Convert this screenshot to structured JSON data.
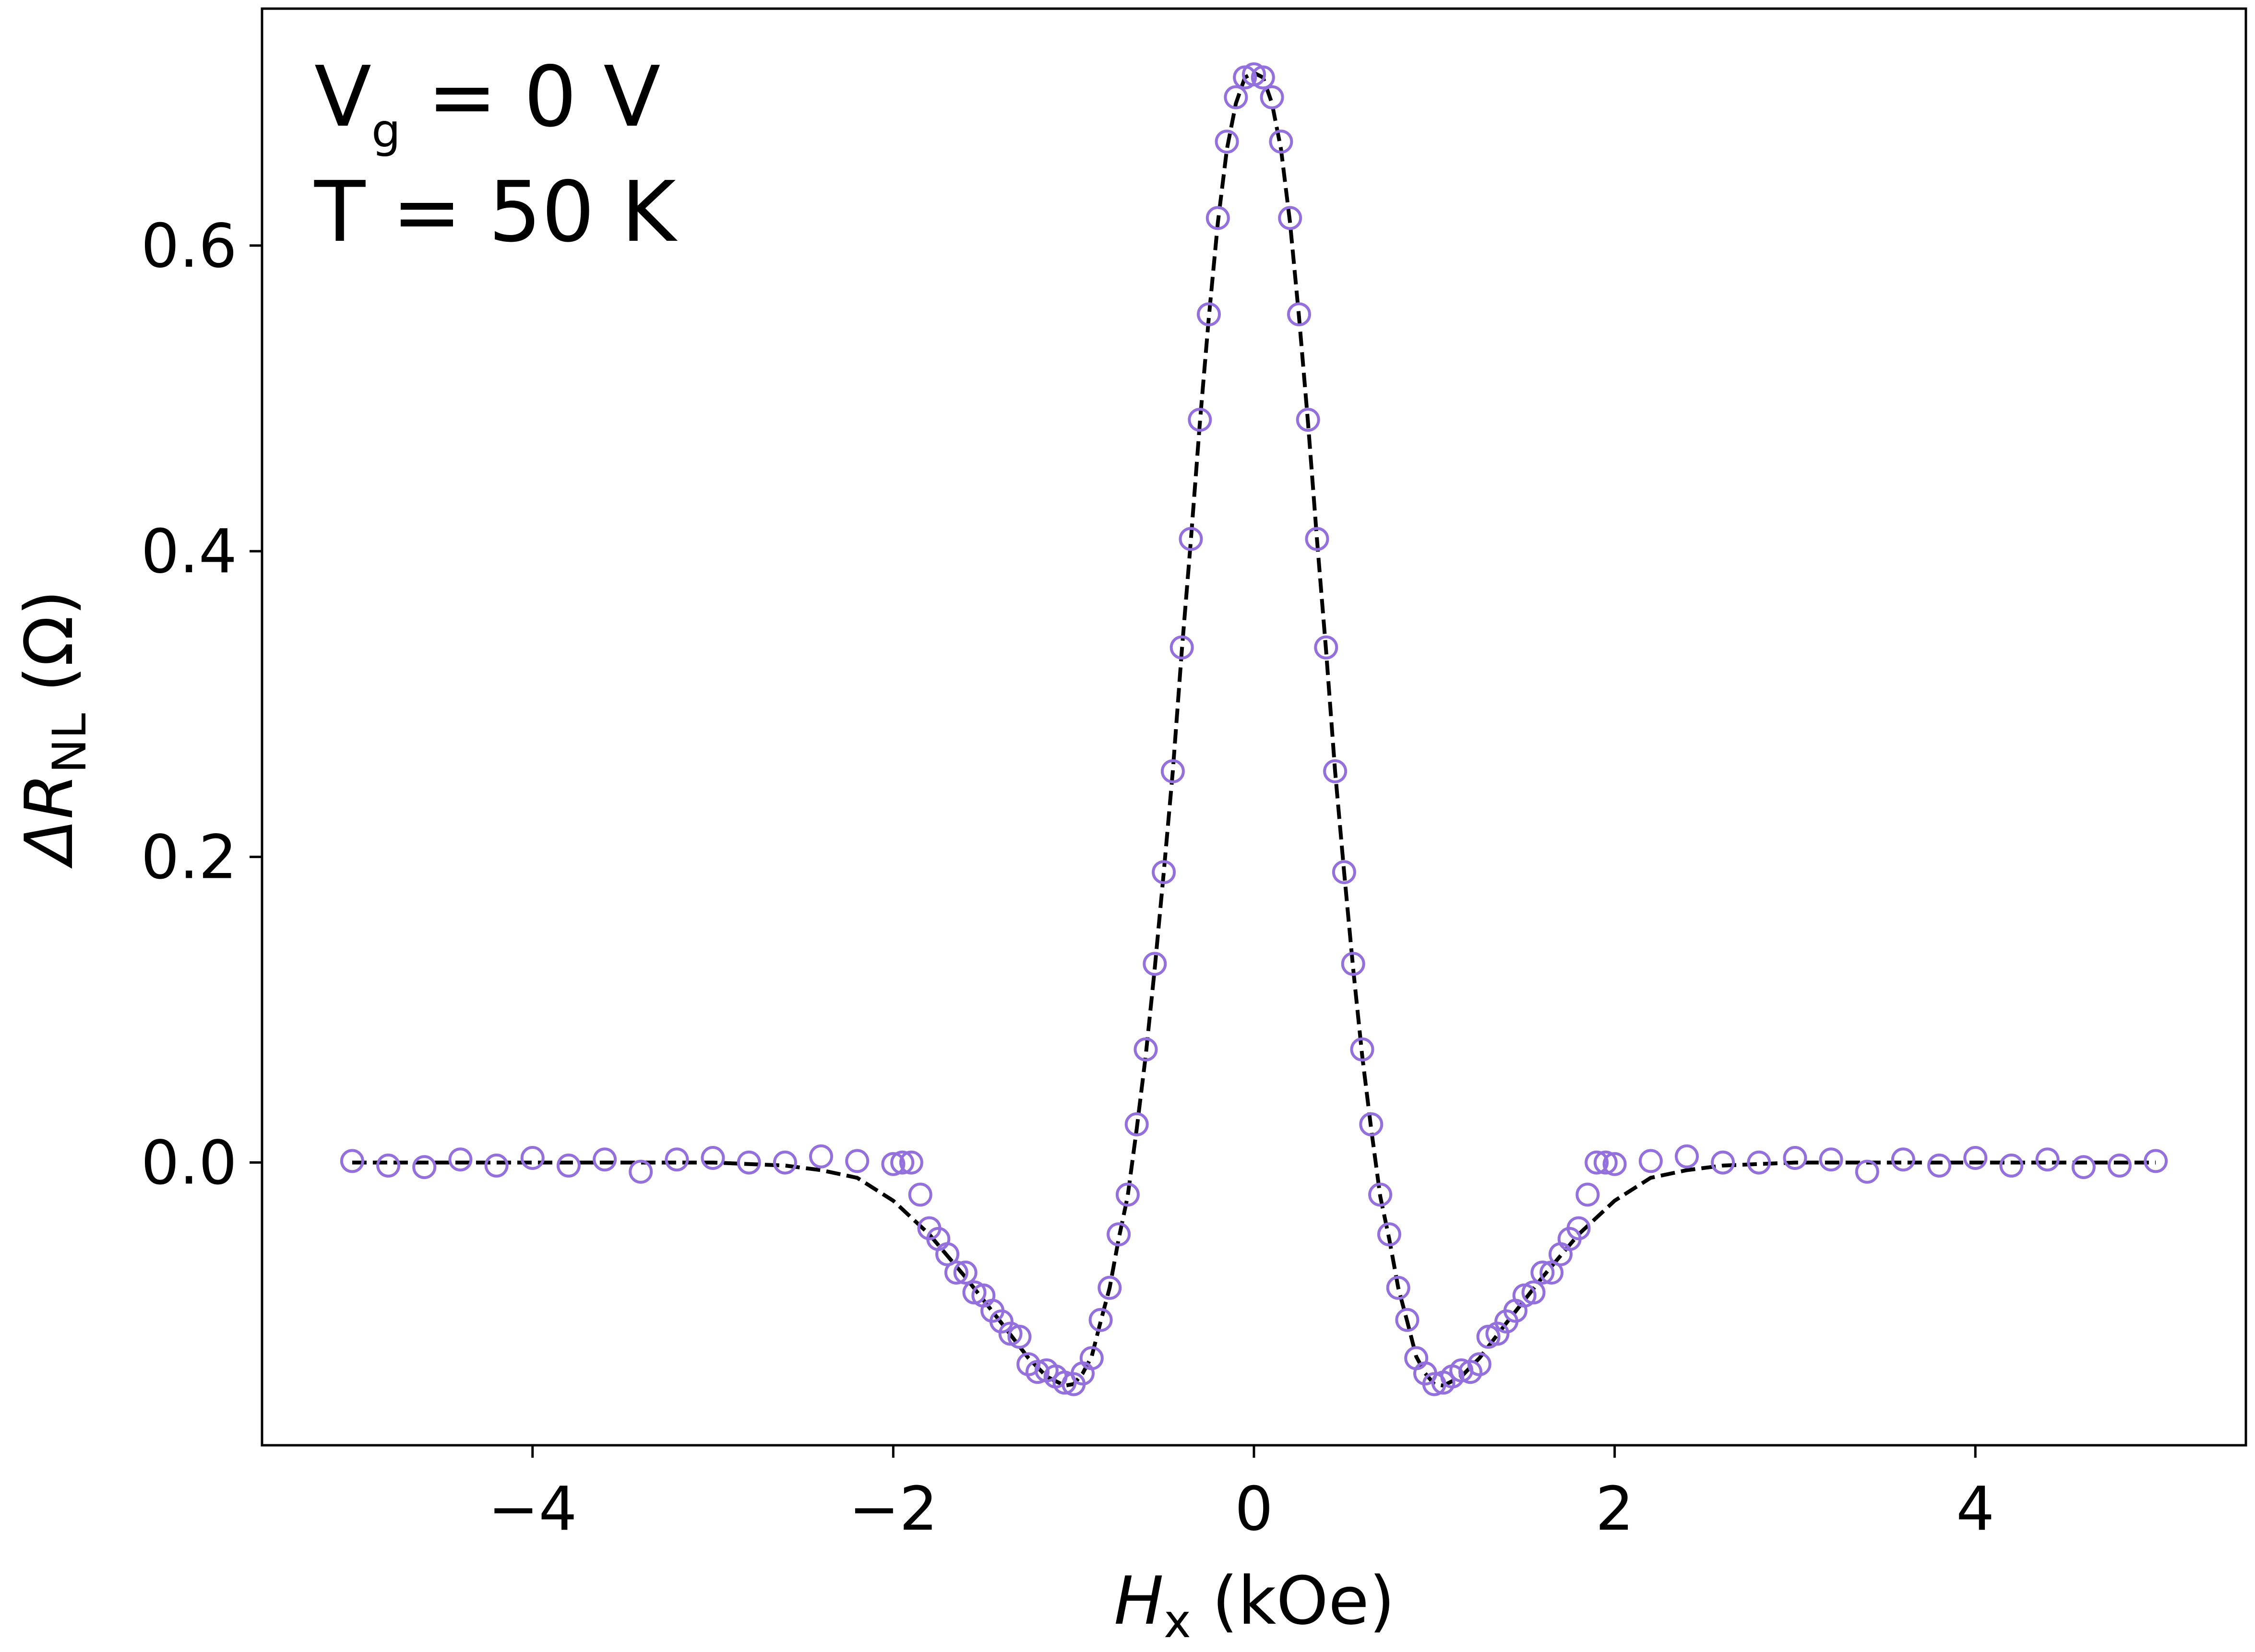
{
  "chart_data": {
    "type": "scatter",
    "xlim": [
      -5.5,
      5.5
    ],
    "ylim": [
      -0.185,
      0.755
    ],
    "x_ticks": [
      {
        "value": -4,
        "label": "−4"
      },
      {
        "value": -2,
        "label": "−2"
      },
      {
        "value": 0,
        "label": "0"
      },
      {
        "value": 2,
        "label": "2"
      },
      {
        "value": 4,
        "label": "4"
      }
    ],
    "y_ticks": [
      {
        "value": 0.0,
        "label": "0.0"
      },
      {
        "value": 0.2,
        "label": "0.2"
      },
      {
        "value": 0.4,
        "label": "0.4"
      },
      {
        "value": 0.6,
        "label": "0.6"
      }
    ],
    "xlabel": {
      "symbol": "H",
      "sub": "x",
      "unit": " (kOe)"
    },
    "ylabel": {
      "symbol": "ΔR",
      "sub": "NL",
      "unit": " (Ω)"
    },
    "annotations": {
      "line1": {
        "main": "V",
        "sub": "g",
        "rest": " = 0 V"
      },
      "line2": "T = 50 K"
    },
    "grid": false,
    "marker_color": "#9370db",
    "fit_color": "#000000",
    "series": [
      {
        "kind": "data",
        "points": [
          [
            -5.0,
            0.001
          ],
          [
            -4.8,
            -0.002
          ],
          [
            -4.6,
            -0.003
          ],
          [
            -4.4,
            0.002
          ],
          [
            -4.2,
            -0.002
          ],
          [
            -4.0,
            0.003
          ],
          [
            -3.8,
            -0.002
          ],
          [
            -3.6,
            0.002
          ],
          [
            -3.4,
            -0.006
          ],
          [
            -3.2,
            0.002
          ],
          [
            -3.0,
            0.003
          ],
          [
            -2.8,
            0.0
          ],
          [
            -2.6,
            0.0
          ],
          [
            -2.4,
            0.004
          ],
          [
            -2.2,
            0.001
          ],
          [
            -2.0,
            -0.001
          ],
          [
            -1.95,
            0.0
          ],
          [
            -1.9,
            0.0
          ],
          [
            -1.85,
            -0.021
          ],
          [
            -1.8,
            -0.043
          ],
          [
            -1.75,
            -0.05
          ],
          [
            -1.7,
            -0.06
          ],
          [
            -1.65,
            -0.072
          ],
          [
            -1.6,
            -0.072
          ],
          [
            -1.55,
            -0.085
          ],
          [
            -1.5,
            -0.087
          ],
          [
            -1.45,
            -0.097
          ],
          [
            -1.4,
            -0.104
          ],
          [
            -1.35,
            -0.112
          ],
          [
            -1.3,
            -0.114
          ],
          [
            -1.25,
            -0.132
          ],
          [
            -1.2,
            -0.137
          ],
          [
            -1.15,
            -0.136
          ],
          [
            -1.1,
            -0.14
          ],
          [
            -1.05,
            -0.144
          ],
          [
            -1.0,
            -0.145
          ],
          [
            -0.95,
            -0.138
          ],
          [
            -0.9,
            -0.128
          ],
          [
            -0.85,
            -0.103
          ],
          [
            -0.8,
            -0.082
          ],
          [
            -0.75,
            -0.047
          ],
          [
            -0.7,
            -0.021
          ],
          [
            -0.65,
            0.025
          ],
          [
            -0.6,
            0.074
          ],
          [
            -0.55,
            0.13
          ],
          [
            -0.5,
            0.19
          ],
          [
            -0.45,
            0.256
          ],
          [
            -0.4,
            0.337
          ],
          [
            -0.35,
            0.408
          ],
          [
            -0.3,
            0.486
          ],
          [
            -0.25,
            0.555
          ],
          [
            -0.2,
            0.618
          ],
          [
            -0.15,
            0.668
          ],
          [
            -0.1,
            0.697
          ],
          [
            -0.05,
            0.71
          ],
          [
            0.0,
            0.712
          ],
          [
            0.05,
            0.71
          ],
          [
            0.1,
            0.697
          ],
          [
            0.15,
            0.668
          ],
          [
            0.2,
            0.618
          ],
          [
            0.25,
            0.555
          ],
          [
            0.3,
            0.486
          ],
          [
            0.35,
            0.408
          ],
          [
            0.4,
            0.337
          ],
          [
            0.45,
            0.256
          ],
          [
            0.5,
            0.19
          ],
          [
            0.55,
            0.13
          ],
          [
            0.6,
            0.074
          ],
          [
            0.65,
            0.025
          ],
          [
            0.7,
            -0.021
          ],
          [
            0.75,
            -0.047
          ],
          [
            0.8,
            -0.082
          ],
          [
            0.85,
            -0.103
          ],
          [
            0.9,
            -0.128
          ],
          [
            0.95,
            -0.138
          ],
          [
            1.0,
            -0.145
          ],
          [
            1.05,
            -0.144
          ],
          [
            1.1,
            -0.14
          ],
          [
            1.15,
            -0.136
          ],
          [
            1.2,
            -0.137
          ],
          [
            1.25,
            -0.132
          ],
          [
            1.3,
            -0.114
          ],
          [
            1.35,
            -0.112
          ],
          [
            1.4,
            -0.104
          ],
          [
            1.45,
            -0.097
          ],
          [
            1.5,
            -0.087
          ],
          [
            1.55,
            -0.085
          ],
          [
            1.6,
            -0.072
          ],
          [
            1.65,
            -0.072
          ],
          [
            1.7,
            -0.06
          ],
          [
            1.75,
            -0.05
          ],
          [
            1.8,
            -0.043
          ],
          [
            1.85,
            -0.021
          ],
          [
            1.9,
            0.0
          ],
          [
            1.95,
            0.0
          ],
          [
            2.0,
            -0.001
          ],
          [
            2.2,
            0.001
          ],
          [
            2.4,
            0.004
          ],
          [
            2.6,
            0.0
          ],
          [
            2.8,
            0.0
          ],
          [
            3.0,
            0.003
          ],
          [
            3.2,
            0.002
          ],
          [
            3.4,
            -0.006
          ],
          [
            3.6,
            0.002
          ],
          [
            3.8,
            -0.002
          ],
          [
            4.0,
            0.003
          ],
          [
            4.2,
            -0.002
          ],
          [
            4.4,
            0.002
          ],
          [
            4.6,
            -0.003
          ],
          [
            4.8,
            -0.002
          ],
          [
            5.0,
            0.001
          ]
        ]
      },
      {
        "kind": "fit",
        "style": "dashed",
        "points": [
          [
            -5.0,
            0.0
          ],
          [
            -3.0,
            0.0
          ],
          [
            -2.6,
            -0.002
          ],
          [
            -2.4,
            -0.005
          ],
          [
            -2.2,
            -0.01
          ],
          [
            -2.0,
            -0.025
          ],
          [
            -1.8,
            -0.047
          ],
          [
            -1.6,
            -0.075
          ],
          [
            -1.4,
            -0.105
          ],
          [
            -1.25,
            -0.128
          ],
          [
            -1.15,
            -0.14
          ],
          [
            -1.05,
            -0.146
          ],
          [
            -1.0,
            -0.145
          ],
          [
            -0.95,
            -0.138
          ],
          [
            -0.9,
            -0.127
          ],
          [
            -0.85,
            -0.104
          ],
          [
            -0.8,
            -0.082
          ],
          [
            -0.75,
            -0.05
          ],
          [
            -0.7,
            -0.022
          ],
          [
            -0.65,
            0.022
          ],
          [
            -0.6,
            0.07
          ],
          [
            -0.55,
            0.127
          ],
          [
            -0.5,
            0.19
          ],
          [
            -0.45,
            0.256
          ],
          [
            -0.4,
            0.335
          ],
          [
            -0.35,
            0.407
          ],
          [
            -0.3,
            0.484
          ],
          [
            -0.25,
            0.553
          ],
          [
            -0.2,
            0.615
          ],
          [
            -0.15,
            0.663
          ],
          [
            -0.1,
            0.693
          ],
          [
            -0.05,
            0.71
          ],
          [
            0.0,
            0.713
          ],
          [
            0.05,
            0.71
          ],
          [
            0.1,
            0.693
          ],
          [
            0.15,
            0.663
          ],
          [
            0.2,
            0.615
          ],
          [
            0.25,
            0.553
          ],
          [
            0.3,
            0.484
          ],
          [
            0.35,
            0.407
          ],
          [
            0.4,
            0.335
          ],
          [
            0.45,
            0.256
          ],
          [
            0.5,
            0.19
          ],
          [
            0.55,
            0.127
          ],
          [
            0.6,
            0.07
          ],
          [
            0.65,
            0.022
          ],
          [
            0.7,
            -0.022
          ],
          [
            0.75,
            -0.05
          ],
          [
            0.8,
            -0.082
          ],
          [
            0.85,
            -0.104
          ],
          [
            0.9,
            -0.127
          ],
          [
            0.95,
            -0.138
          ],
          [
            1.0,
            -0.145
          ],
          [
            1.05,
            -0.146
          ],
          [
            1.15,
            -0.14
          ],
          [
            1.25,
            -0.128
          ],
          [
            1.4,
            -0.105
          ],
          [
            1.6,
            -0.075
          ],
          [
            1.8,
            -0.047
          ],
          [
            2.0,
            -0.025
          ],
          [
            2.2,
            -0.01
          ],
          [
            2.4,
            -0.005
          ],
          [
            2.6,
            -0.002
          ],
          [
            3.0,
            0.0
          ],
          [
            5.0,
            0.0
          ]
        ]
      }
    ]
  }
}
